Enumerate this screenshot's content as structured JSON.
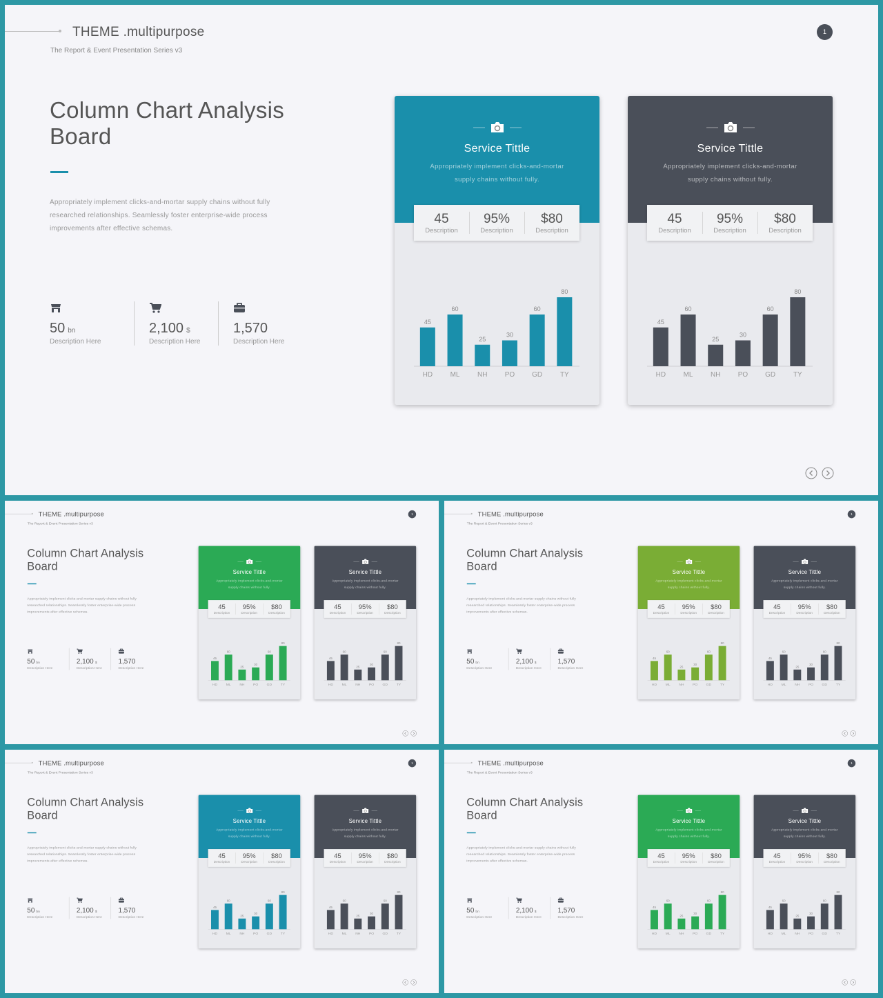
{
  "brand": "THEME .multipurpose",
  "tagline": "The Report & Event Presentation Series v3",
  "page_number": "1",
  "title": "Column Chart Analysis Board",
  "description": "Appropriately implement clicks-and-mortar supply chains without fully researched relationships. Seamlessly foster enterprise-wide process improvements after effective schemas.",
  "stats": [
    {
      "value": "50",
      "unit": "bn",
      "label": "Description Here",
      "icon": "store-icon"
    },
    {
      "value": "2,100",
      "unit": "$",
      "label": "Description Here",
      "icon": "cart-icon"
    },
    {
      "value": "1,570",
      "unit": "",
      "label": "Description Here",
      "icon": "briefcase-icon"
    }
  ],
  "card": {
    "title": "Service Tittle",
    "description": "Appropriately implement clicks-and-mortar supply chains without fully.",
    "kpis": [
      {
        "value": "45",
        "label": "Description"
      },
      {
        "value": "95%",
        "label": "Description"
      },
      {
        "value": "$80",
        "label": "Description"
      }
    ]
  },
  "chart_data": {
    "type": "bar",
    "categories": [
      "HD",
      "ML",
      "NH",
      "PO",
      "GD",
      "TY"
    ],
    "values": [
      45,
      60,
      25,
      30,
      60,
      80
    ],
    "ylim": [
      0,
      80
    ]
  },
  "themes": [
    {
      "card1": "#1a8fab",
      "card2": "#4a4f59"
    },
    {
      "card1": "#2baa55",
      "card2": "#4a4f59"
    },
    {
      "card1": "#7aad35",
      "card2": "#4a4f59"
    },
    {
      "card1": "#1a8fab",
      "card2": "#4a4f59"
    },
    {
      "card1": "#2baa55",
      "card2": "#4a4f59"
    }
  ],
  "colors": {
    "frame": "#2d98a5",
    "slide_bg": "#f5f5f9",
    "accent": "#1a8fab"
  }
}
